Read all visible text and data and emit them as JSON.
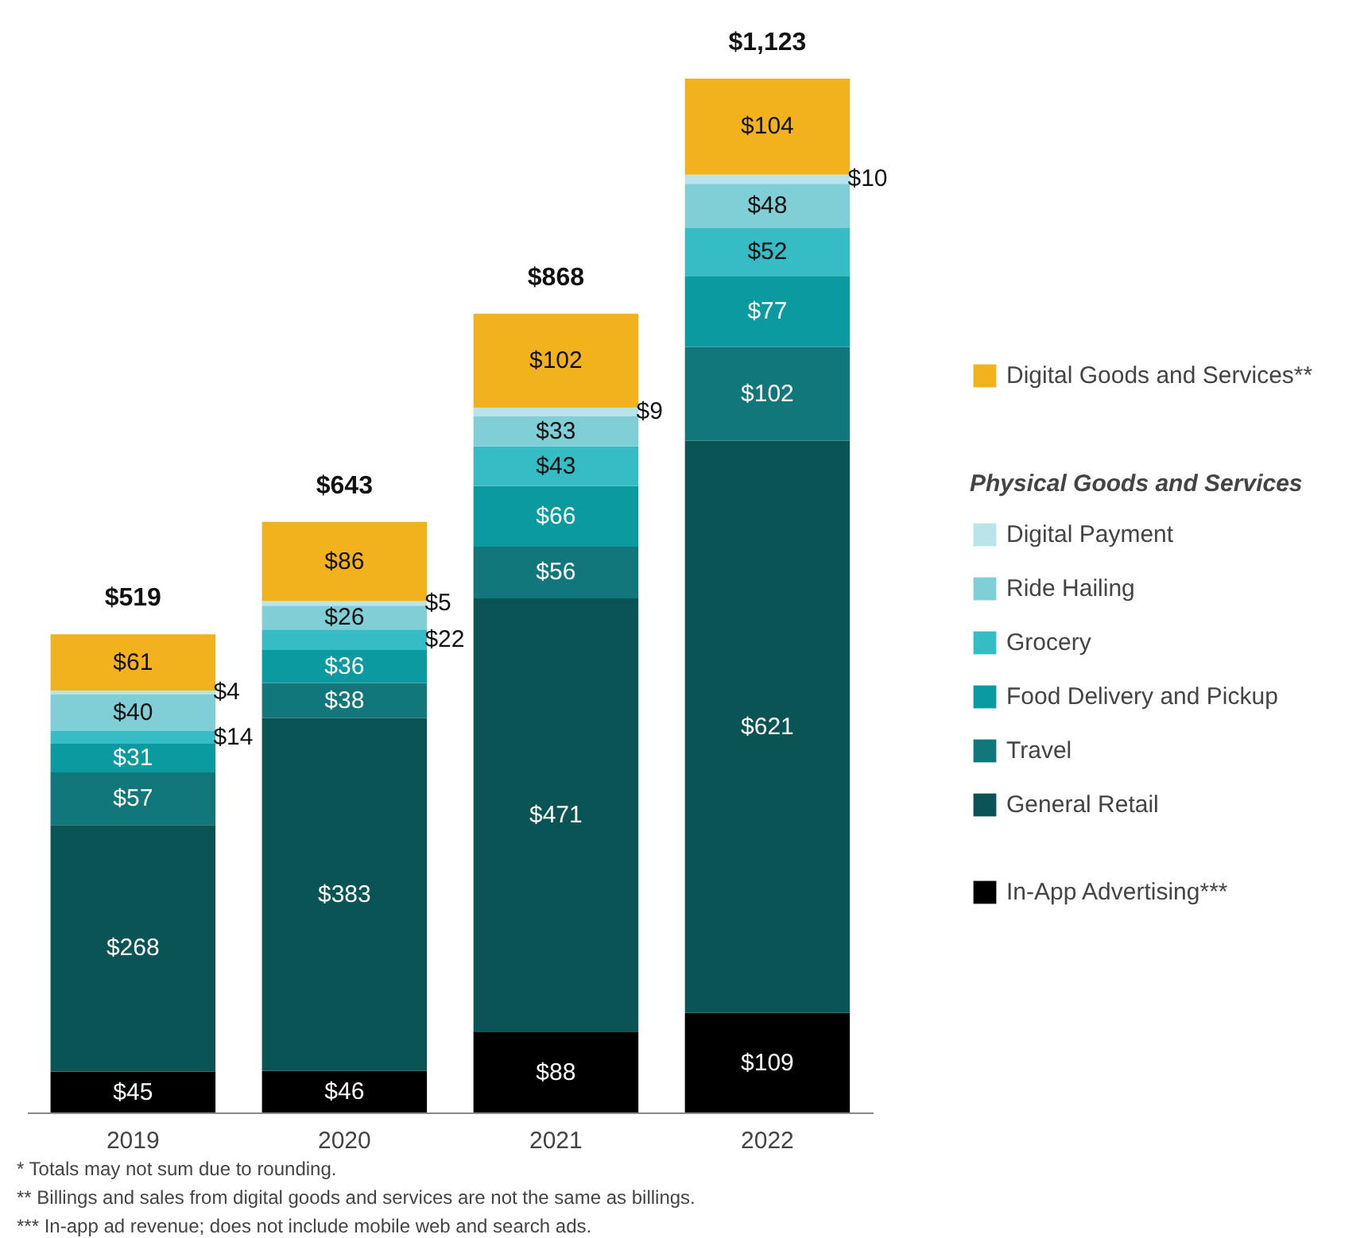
{
  "chart_data": {
    "type": "bar",
    "stacked": true,
    "categories": [
      "2019",
      "2020",
      "2021",
      "2022"
    ],
    "legend_title": "Physical Goods and Services",
    "legend": "right",
    "series": [
      {
        "name": "In-App Advertising***",
        "color": "#000000",
        "values": [
          45,
          46,
          88,
          109
        ],
        "value_labels": [
          "$45",
          "$46",
          "$88",
          "$109"
        ]
      },
      {
        "name": "General Retail",
        "color": "#0b5456",
        "values": [
          268,
          383,
          471,
          621
        ],
        "value_labels": [
          "$268",
          "$383",
          "$471",
          "$621"
        ]
      },
      {
        "name": "Travel",
        "color": "#12777a",
        "values": [
          57,
          38,
          56,
          102
        ],
        "value_labels": [
          "$57",
          "$38",
          "$56",
          "$102"
        ]
      },
      {
        "name": "Food Delivery and Pickup",
        "color": "#0a9aa0",
        "values": [
          31,
          36,
          66,
          77
        ],
        "value_labels": [
          "$31",
          "$36",
          "$66",
          "$77"
        ]
      },
      {
        "name": "Grocery",
        "color": "#36bcc4",
        "values": [
          14,
          22,
          43,
          52
        ],
        "value_labels": [
          "$14",
          "$22",
          "$43",
          "$52"
        ]
      },
      {
        "name": "Ride Hailing",
        "color": "#80ced6",
        "values": [
          40,
          26,
          33,
          48
        ],
        "value_labels": [
          "$40",
          "$26",
          "$33",
          "$48"
        ]
      },
      {
        "name": "Digital Payment",
        "color": "#b8e4ea",
        "values": [
          4,
          5,
          9,
          10
        ],
        "value_labels": [
          "$4",
          "$5",
          "$9",
          "$10"
        ]
      },
      {
        "name": "Digital Goods and Services**",
        "color": "#f2b21e",
        "values": [
          61,
          86,
          102,
          104
        ],
        "value_labels": [
          "$61",
          "$86",
          "$102",
          "$104"
        ]
      }
    ],
    "totals": [
      "$519",
      "$643",
      "$868",
      "$1,123"
    ],
    "grid": false,
    "annotations": [
      "*   Totals may not sum due to rounding.",
      "**  Billings and sales from digital goods and services are not the same as billings.",
      "*** In-app ad revenue; does not include mobile web and search ads."
    ]
  }
}
